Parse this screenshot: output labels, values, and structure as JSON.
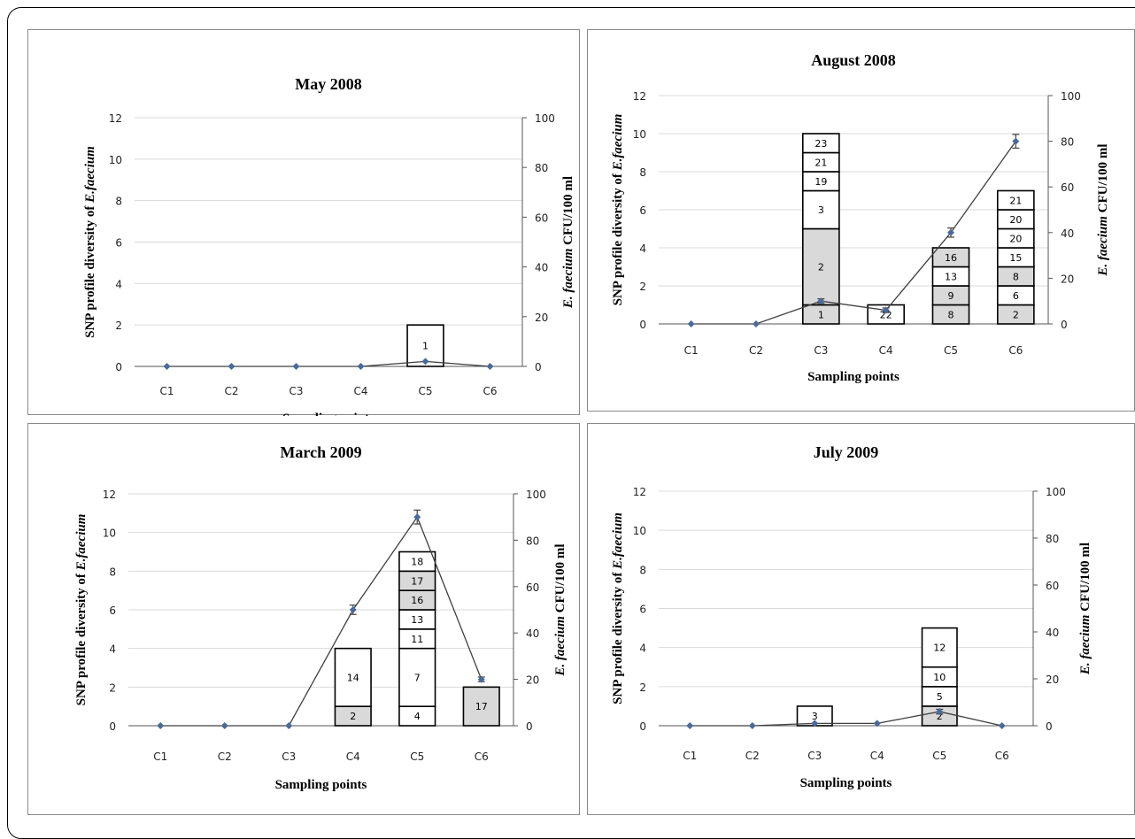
{
  "chart_data": [
    {
      "type": "bar",
      "title": "May 2008",
      "xlabel": "Sampling points",
      "ylabel_prefix": "SNP profile diversity of ",
      "ylabel_italic": "E.faecium",
      "y2label_italic": "E. faecium",
      "y2label_suffix": " CFU/100 ml",
      "categories": [
        "C1",
        "C2",
        "C3",
        "C4",
        "C5",
        "C6"
      ],
      "ylim": [
        0,
        12
      ],
      "yticks": [
        "0",
        "2",
        "4",
        "6",
        "8",
        "10",
        "12"
      ],
      "y2lim": [
        0,
        100
      ],
      "y2ticks": [
        "0",
        "20",
        "40",
        "60",
        "80",
        "100"
      ],
      "grid": true,
      "bars": [
        [],
        [],
        [],
        [],
        [
          {
            "value": 2,
            "label": "1",
            "fill": "#ffffff"
          }
        ],
        []
      ],
      "line": {
        "name": "CFU/100 ml",
        "axis": "right",
        "values": [
          0,
          0,
          0,
          0,
          2,
          0
        ],
        "errors": [
          0,
          0,
          0,
          0,
          0,
          0
        ]
      }
    },
    {
      "type": "bar",
      "title": "August 2008",
      "xlabel": "Sampling points",
      "ylabel_prefix": "SNP profile diversity of ",
      "ylabel_italic": "E.faecium",
      "y2label_italic": "E. faecium",
      "y2label_suffix": " CFU/100 ml",
      "categories": [
        "C1",
        "C2",
        "C3",
        "C4",
        "C5",
        "C6"
      ],
      "ylim": [
        0,
        12
      ],
      "yticks": [
        "0",
        "2",
        "4",
        "6",
        "8",
        "10",
        "12"
      ],
      "y2lim": [
        0,
        100
      ],
      "y2ticks": [
        "0",
        "20",
        "40",
        "60",
        "80",
        "100"
      ],
      "grid": true,
      "bars": [
        [],
        [],
        [
          {
            "value": 1,
            "label": "1",
            "fill": "#d9d9d9"
          },
          {
            "value": 4,
            "label": "2",
            "fill": "#d9d9d9"
          },
          {
            "value": 2,
            "label": "3",
            "fill": "#ffffff"
          },
          {
            "value": 1,
            "label": "19",
            "fill": "#ffffff"
          },
          {
            "value": 1,
            "label": "21",
            "fill": "#ffffff"
          },
          {
            "value": 1,
            "label": "23",
            "fill": "#ffffff"
          }
        ],
        [
          {
            "value": 1,
            "label": "22",
            "fill": "#ffffff"
          }
        ],
        [
          {
            "value": 1,
            "label": "8",
            "fill": "#d9d9d9"
          },
          {
            "value": 1,
            "label": "9",
            "fill": "#d9d9d9"
          },
          {
            "value": 1,
            "label": "13",
            "fill": "#ffffff"
          },
          {
            "value": 1,
            "label": "16",
            "fill": "#d9d9d9"
          }
        ],
        [
          {
            "value": 1,
            "label": "2",
            "fill": "#d9d9d9"
          },
          {
            "value": 1,
            "label": "6",
            "fill": "#ffffff"
          },
          {
            "value": 1,
            "label": "8",
            "fill": "#d9d9d9"
          },
          {
            "value": 1,
            "label": "15",
            "fill": "#ffffff"
          },
          {
            "value": 1,
            "label": "20",
            "fill": "#ffffff"
          },
          {
            "value": 1,
            "label": "20",
            "fill": "#ffffff"
          },
          {
            "value": 1,
            "label": "21",
            "fill": "#ffffff"
          }
        ]
      ],
      "line": {
        "name": "CFU/100 ml",
        "axis": "right",
        "values": [
          0,
          0,
          10,
          6,
          40,
          80
        ],
        "errors": [
          0,
          0,
          1,
          1,
          2,
          3
        ]
      }
    },
    {
      "type": "bar",
      "title": "March 2009",
      "xlabel": "Sampling points",
      "ylabel_prefix": "SNP profile diversity of ",
      "ylabel_italic": "E.faecium",
      "y2label_italic": "E. faecium",
      "y2label_suffix": " CFU/100 ml",
      "categories": [
        "C1",
        "C2",
        "C3",
        "C4",
        "C5",
        "C6"
      ],
      "ylim": [
        0,
        12
      ],
      "yticks": [
        "0",
        "2",
        "4",
        "6",
        "8",
        "10",
        "12"
      ],
      "y2lim": [
        0,
        100
      ],
      "y2ticks": [
        "0",
        "20",
        "40",
        "60",
        "80",
        "100"
      ],
      "grid": true,
      "bars": [
        [],
        [],
        [],
        [
          {
            "value": 1,
            "label": "2",
            "fill": "#d9d9d9"
          },
          {
            "value": 3,
            "label": "14",
            "fill": "#ffffff"
          }
        ],
        [
          {
            "value": 1,
            "label": "4",
            "fill": "#ffffff"
          },
          {
            "value": 3,
            "label": "7",
            "fill": "#ffffff"
          },
          {
            "value": 1,
            "label": "11",
            "fill": "#ffffff"
          },
          {
            "value": 1,
            "label": "13",
            "fill": "#ffffff"
          },
          {
            "value": 1,
            "label": "16",
            "fill": "#d9d9d9"
          },
          {
            "value": 1,
            "label": "17",
            "fill": "#d9d9d9"
          },
          {
            "value": 1,
            "label": "18",
            "fill": "#ffffff"
          }
        ],
        [
          {
            "value": 2,
            "label": "17",
            "fill": "#d9d9d9"
          }
        ]
      ],
      "line": {
        "name": "CFU/100 ml",
        "axis": "right",
        "values": [
          0,
          0,
          0,
          50,
          90,
          20
        ],
        "errors": [
          0,
          0,
          0,
          2,
          3,
          1
        ]
      }
    },
    {
      "type": "bar",
      "title": "July 2009",
      "xlabel": "Sampling points",
      "ylabel_prefix": "SNP profile diversity of ",
      "ylabel_italic": "E.faecium",
      "y2label_italic": "E. faecium",
      "y2label_suffix": " CFU/100 ml",
      "categories": [
        "C1",
        "C2",
        "C3",
        "C4",
        "C5",
        "C6"
      ],
      "ylim": [
        0,
        12
      ],
      "yticks": [
        "0",
        "2",
        "4",
        "6",
        "8",
        "10",
        "12"
      ],
      "y2lim": [
        0,
        100
      ],
      "y2ticks": [
        "0",
        "20",
        "40",
        "60",
        "80",
        "100"
      ],
      "grid": true,
      "bars": [
        [],
        [],
        [
          {
            "value": 1,
            "label": "3",
            "fill": "#ffffff"
          }
        ],
        [],
        [
          {
            "value": 1,
            "label": "2",
            "fill": "#d9d9d9"
          },
          {
            "value": 1,
            "label": "5",
            "fill": "#ffffff"
          },
          {
            "value": 1,
            "label": "10",
            "fill": "#ffffff"
          },
          {
            "value": 2,
            "label": "12",
            "fill": "#ffffff"
          }
        ],
        []
      ],
      "line": {
        "name": "CFU/100 ml",
        "axis": "right",
        "values": [
          0,
          0,
          1,
          1,
          6,
          0
        ],
        "errors": [
          0,
          0,
          0,
          0,
          1,
          0
        ]
      }
    }
  ]
}
